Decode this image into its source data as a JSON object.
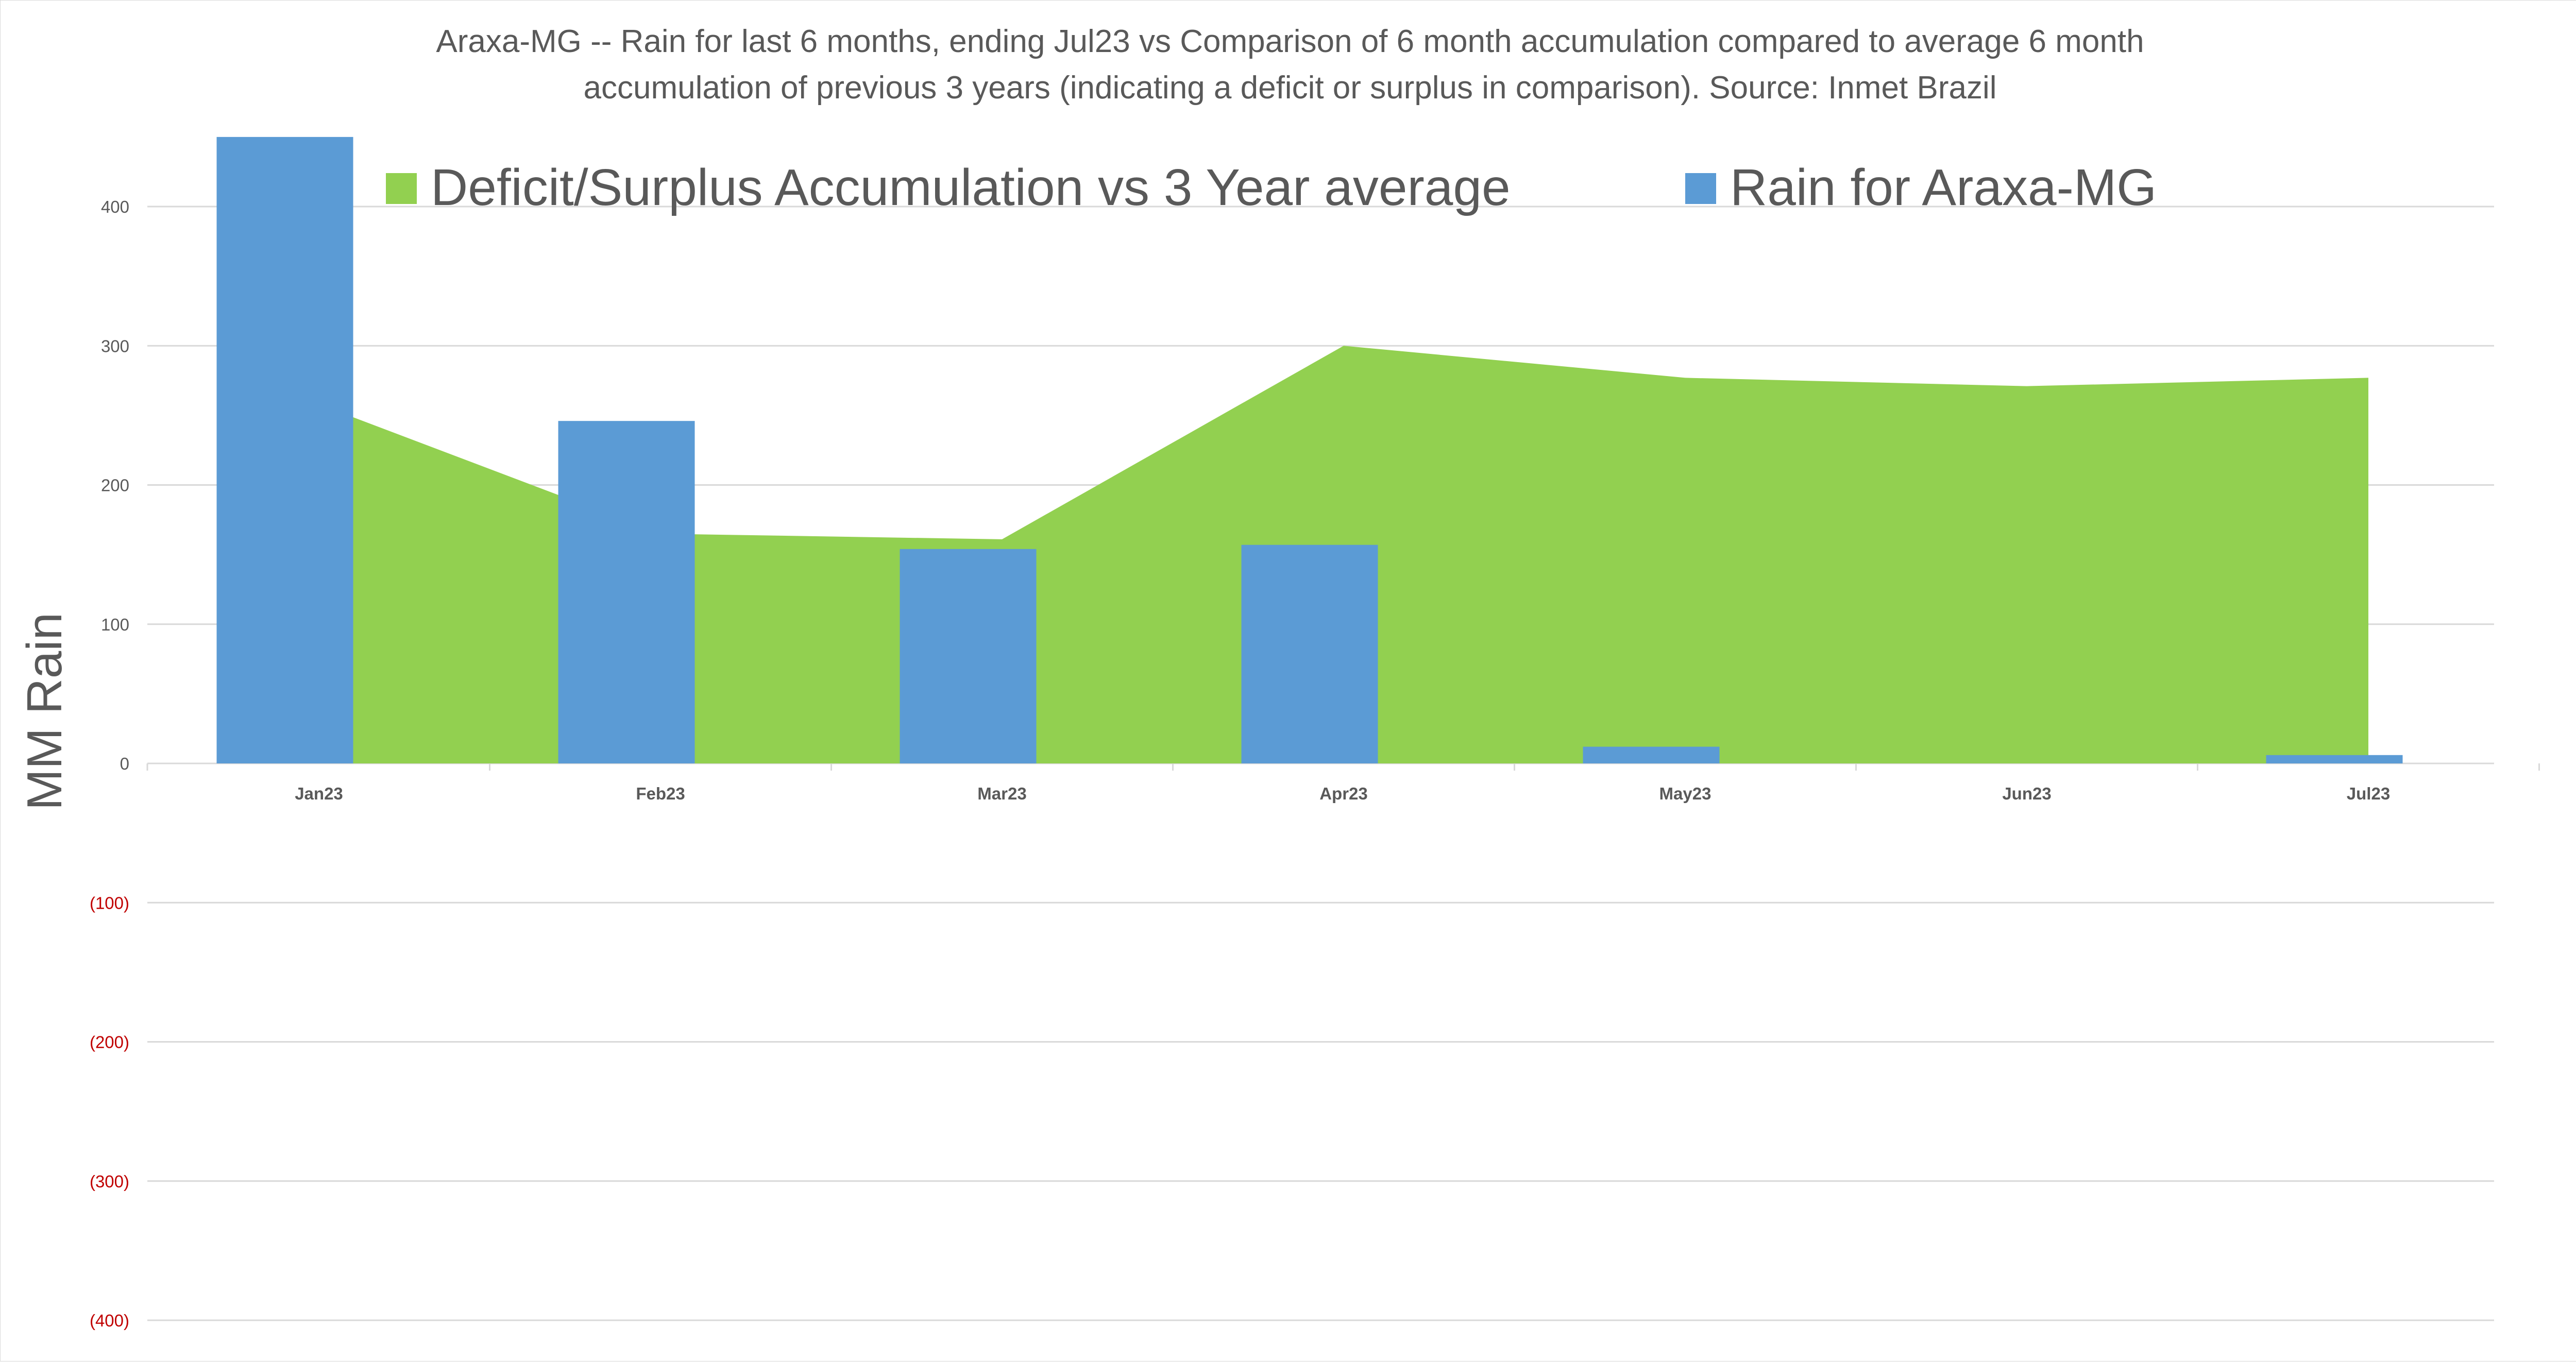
{
  "chart_data": {
    "type": "bar",
    "title_lines": [
      "Araxa-MG -- Rain for last 6 months, ending Jul23  vs Comparison of 6 month accumulation compared to average 6 month",
      "accumulation of previous 3 years  (indicating a deficit or surplus in comparison). Source: Inmet Brazil"
    ],
    "ylabel": "MM Rain",
    "xlabel": "",
    "categories": [
      "Jan23",
      "Feb23",
      "Mar23",
      "Apr23",
      "May23",
      "Jun23",
      "Jul23"
    ],
    "ylim": [
      -400,
      400
    ],
    "yticks": [
      {
        "value": 400,
        "label": "400"
      },
      {
        "value": 300,
        "label": "300"
      },
      {
        "value": 200,
        "label": "200"
      },
      {
        "value": 100,
        "label": "100"
      },
      {
        "value": 0,
        "label": "0"
      },
      {
        "value": -100,
        "label": "(100)"
      },
      {
        "value": -200,
        "label": "(200)"
      },
      {
        "value": -300,
        "label": "(300)"
      },
      {
        "value": -400,
        "label": "(400)"
      }
    ],
    "grid": true,
    "legend_position": "top",
    "series": [
      {
        "name": "Deficit/Surplus Accumulation vs 3 Year average",
        "type": "area",
        "color": "#92d050",
        "values": [
          258,
          165,
          161,
          300,
          277,
          271,
          277
        ]
      },
      {
        "name": "Rain for Araxa-MG",
        "type": "bar",
        "color": "#5b9bd5",
        "values": [
          450,
          246,
          154,
          157,
          12,
          0,
          6
        ]
      }
    ],
    "negative_tick_color": "#c00000",
    "gridline_color": "#d9d9d9"
  }
}
